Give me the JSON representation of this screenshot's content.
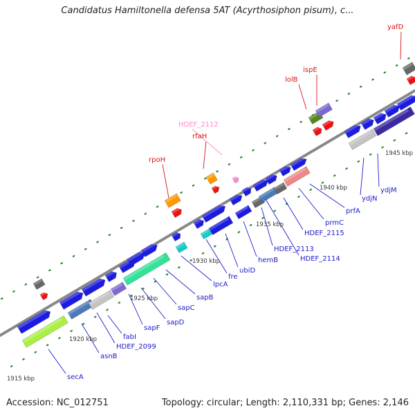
{
  "title": "Candidatus Hamiltonella defensa 5AT (Acyrthosiphon pisum), c...",
  "accession": "Accession: NC_012751",
  "topology": "Topology: circular; Length: 2,110,331 bp; Genes: 2,146",
  "kbp_labels": [
    {
      "text": "1915 kbp"
    },
    {
      "text": "1920 kbp"
    },
    {
      "text": "1925 kbp"
    },
    {
      "text": "1930 kbp"
    },
    {
      "text": "1935 kbp"
    },
    {
      "text": "1940 kbp"
    },
    {
      "text": "1945 kbp"
    }
  ],
  "gene_labels_bottom": [
    {
      "text": "secA"
    },
    {
      "text": "asnB"
    },
    {
      "text": "HDEF_2099"
    },
    {
      "text": "fabI"
    },
    {
      "text": "sapF"
    },
    {
      "text": "sapD"
    },
    {
      "text": "sapC"
    },
    {
      "text": "sapB"
    },
    {
      "text": "lpcA"
    },
    {
      "text": "fre"
    },
    {
      "text": "ubiD"
    },
    {
      "text": "hemB"
    },
    {
      "text": "HDEF_2113"
    },
    {
      "text": "HDEF_2114"
    },
    {
      "text": "HDEF_2115"
    },
    {
      "text": "prmC"
    },
    {
      "text": "prfA"
    },
    {
      "text": "ydjN"
    },
    {
      "text": "ydjM"
    }
  ],
  "gene_labels_top": [
    {
      "text": "rpoH"
    },
    {
      "text": "rfaH"
    },
    {
      "text": "HDEF_2112"
    },
    {
      "text": "lolB"
    },
    {
      "text": "ispE"
    },
    {
      "text": "yafD"
    }
  ],
  "colors": {
    "blue": "#1c1ce0",
    "steel": "#4a7ab8",
    "gray": "#c4c4c4",
    "lavender": "#7a6ad0",
    "green": "#33e299",
    "lime": "#aaf044",
    "orange": "#ff9900",
    "red": "#ee1111",
    "cyan": "#11cccc",
    "salmon": "#ee8888",
    "olive": "#558822",
    "navy": "#3a2aa0",
    "dark": "#666666",
    "pink": "#ff88cc",
    "axis": "#888888"
  }
}
